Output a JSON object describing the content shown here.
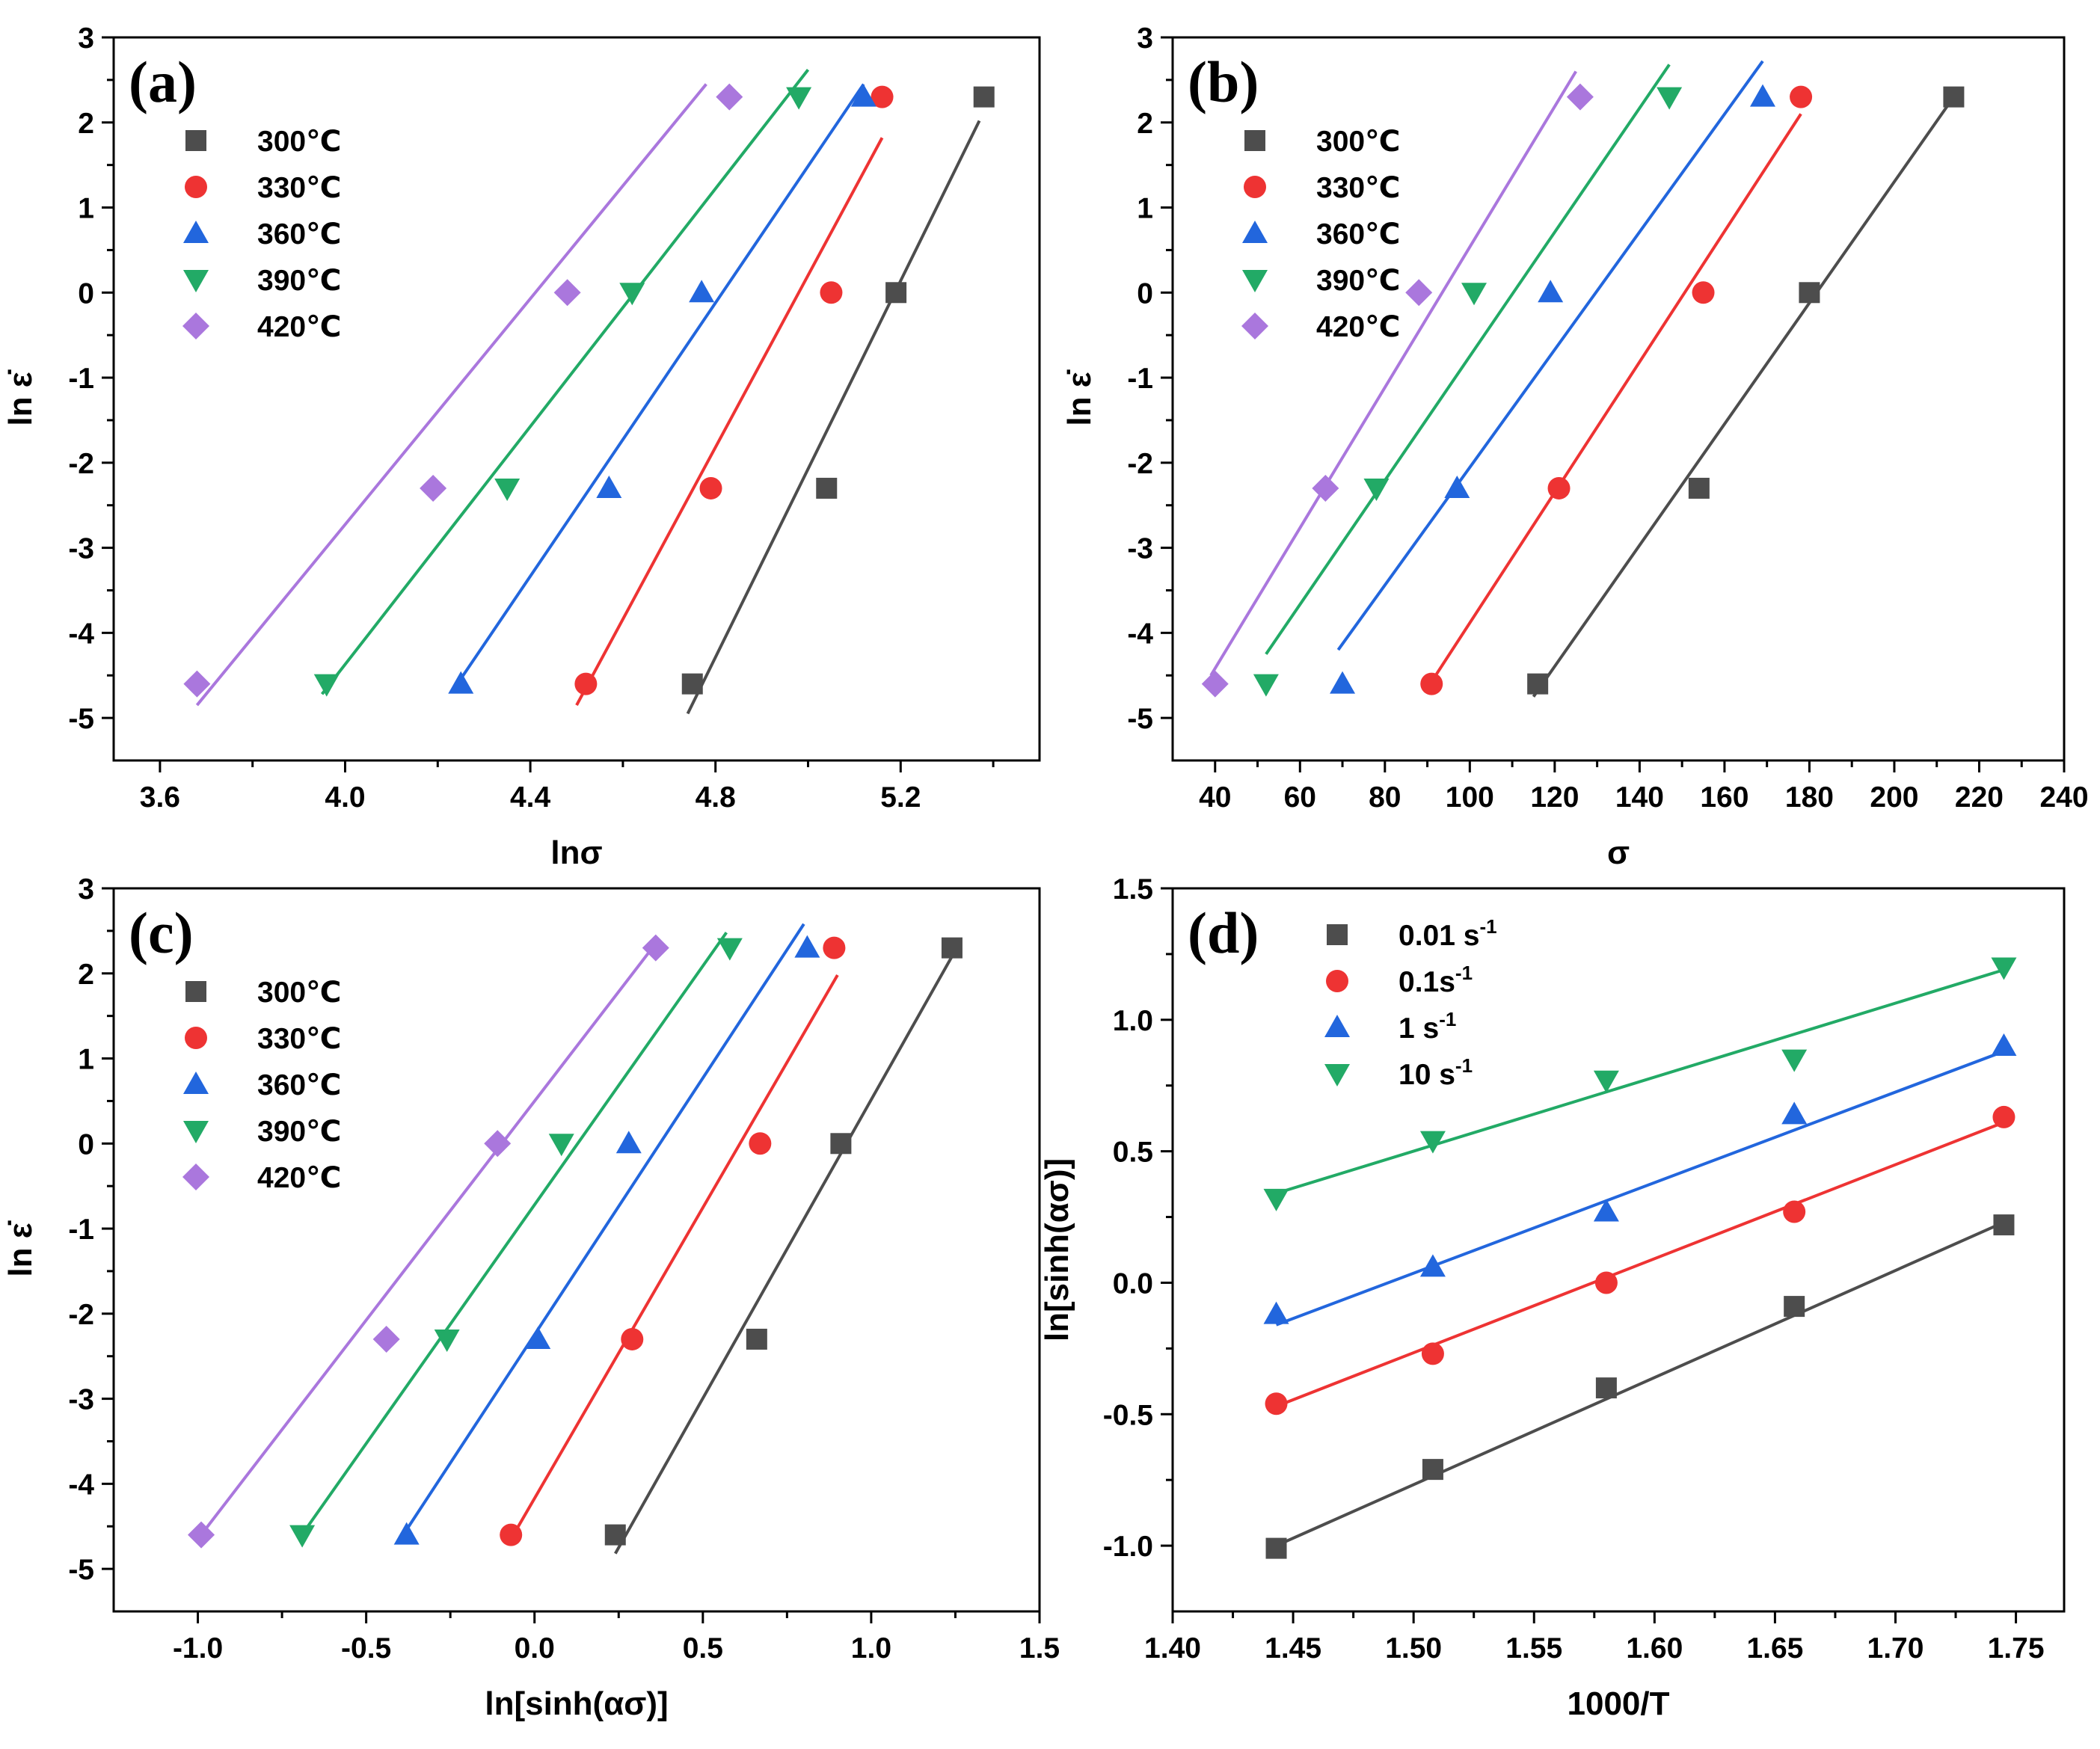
{
  "figure": {
    "layout": "2x2 grid of scatter plots with linear fits"
  },
  "chart_data": [
    {
      "panel": "(a)",
      "type": "scatter",
      "xlabel": "lnσ",
      "ylabel": "ln ε̇",
      "xlim": [
        3.5,
        5.5
      ],
      "ylim": [
        -5.5,
        3
      ],
      "xticks": [
        3.6,
        4.0,
        4.4,
        4.8,
        5.2
      ],
      "xtick_labels": [
        "3.6",
        "4.0",
        "4.4",
        "4.8",
        "5.2"
      ],
      "yticks": [
        -5,
        -4,
        -3,
        -2,
        -1,
        0,
        1,
        2,
        3
      ],
      "ytick_labels": [
        "-5",
        "-4",
        "-3",
        "-2",
        "-1",
        "0",
        "1",
        "2",
        "3"
      ],
      "legend_position": "top-left",
      "series": [
        {
          "name": "300℃",
          "color": "#4d4d4d",
          "marker": "square",
          "x": [
            4.75,
            5.04,
            5.19,
            5.38
          ],
          "y": [
            -4.6,
            -2.3,
            0,
            2.3
          ],
          "fit": [
            [
              4.74,
              -4.95
            ],
            [
              5.37,
              2.02
            ]
          ]
        },
        {
          "name": "330℃",
          "color": "#ee3333",
          "marker": "circle",
          "x": [
            4.52,
            4.79,
            5.05,
            5.16
          ],
          "y": [
            -4.6,
            -2.3,
            0,
            2.3
          ],
          "fit": [
            [
              4.5,
              -4.85
            ],
            [
              5.16,
              1.82
            ]
          ]
        },
        {
          "name": "360℃",
          "color": "#2266dd",
          "marker": "triangle-up",
          "x": [
            4.25,
            4.57,
            4.77,
            5.12
          ],
          "y": [
            -4.6,
            -2.3,
            0,
            2.3
          ],
          "fit": [
            [
              4.23,
              -4.7
            ],
            [
              5.12,
              2.45
            ]
          ]
        },
        {
          "name": "390℃",
          "color": "#22aa66",
          "marker": "triangle-down",
          "x": [
            3.96,
            4.35,
            4.62,
            4.98
          ],
          "y": [
            -4.6,
            -2.3,
            0,
            2.3
          ],
          "fit": [
            [
              3.95,
              -4.72
            ],
            [
              5.0,
              2.62
            ]
          ]
        },
        {
          "name": "420℃",
          "color": "#aa77dd",
          "marker": "diamond",
          "x": [
            3.68,
            4.19,
            4.48,
            4.83
          ],
          "y": [
            -4.6,
            -2.3,
            0,
            2.3
          ],
          "fit": [
            [
              3.68,
              -4.85
            ],
            [
              4.78,
              2.45
            ]
          ]
        }
      ]
    },
    {
      "panel": "(b)",
      "type": "scatter",
      "xlabel": "σ",
      "ylabel": "ln ε̇",
      "xlim": [
        30,
        240
      ],
      "ylim": [
        -5.5,
        3
      ],
      "xticks": [
        40,
        60,
        80,
        100,
        120,
        140,
        160,
        180,
        200,
        220,
        240
      ],
      "xtick_labels": [
        "40",
        "60",
        "80",
        "100",
        "120",
        "140",
        "160",
        "180",
        "200",
        "220",
        "240"
      ],
      "yticks": [
        -5,
        -4,
        -3,
        -2,
        -1,
        0,
        1,
        2,
        3
      ],
      "ytick_labels": [
        "-5",
        "-4",
        "-3",
        "-2",
        "-1",
        "0",
        "1",
        "2",
        "3"
      ],
      "legend_position": "top-left",
      "series": [
        {
          "name": "300℃",
          "color": "#4d4d4d",
          "marker": "square",
          "x": [
            116,
            154,
            180,
            214
          ],
          "y": [
            -4.6,
            -2.3,
            0,
            2.3
          ],
          "fit": [
            [
              115,
              -4.75
            ],
            [
              214,
              2.3
            ]
          ]
        },
        {
          "name": "330℃",
          "color": "#ee3333",
          "marker": "circle",
          "x": [
            91,
            121,
            155,
            178
          ],
          "y": [
            -4.6,
            -2.3,
            0,
            2.3
          ],
          "fit": [
            [
              90,
              -4.65
            ],
            [
              178,
              2.1
            ]
          ]
        },
        {
          "name": "360℃",
          "color": "#2266dd",
          "marker": "triangle-up",
          "x": [
            70,
            97,
            119,
            169
          ],
          "y": [
            -4.6,
            -2.3,
            0,
            2.3
          ],
          "fit": [
            [
              69,
              -4.2
            ],
            [
              169,
              2.72
            ]
          ]
        },
        {
          "name": "390℃",
          "color": "#22aa66",
          "marker": "triangle-down",
          "x": [
            52,
            78,
            101,
            147
          ],
          "y": [
            -4.6,
            -2.3,
            0,
            2.3
          ],
          "fit": [
            [
              52,
              -4.25
            ],
            [
              147,
              2.68
            ]
          ]
        },
        {
          "name": "420℃",
          "color": "#aa77dd",
          "marker": "diamond",
          "x": [
            40,
            66,
            88,
            126
          ],
          "y": [
            -4.6,
            -2.3,
            0,
            2.3
          ],
          "fit": [
            [
              39,
              -4.5
            ],
            [
              125,
              2.6
            ]
          ]
        }
      ]
    },
    {
      "panel": "(c)",
      "type": "scatter",
      "xlabel": "ln[sinh(ασ)]",
      "ylabel": "ln ε̇",
      "xlim": [
        -1.25,
        1.5
      ],
      "ylim": [
        -5.5,
        3
      ],
      "xticks": [
        -1.0,
        -0.5,
        0.0,
        0.5,
        1.0,
        1.5
      ],
      "xtick_labels": [
        "-1.0",
        "-0.5",
        "0.0",
        "0.5",
        "1.0",
        "1.5"
      ],
      "yticks": [
        -5,
        -4,
        -3,
        -2,
        -1,
        0,
        1,
        2,
        3
      ],
      "ytick_labels": [
        "-5",
        "-4",
        "-3",
        "-2",
        "-1",
        "0",
        "1",
        "2",
        "3"
      ],
      "legend_position": "top-left",
      "series": [
        {
          "name": "300℃",
          "color": "#4d4d4d",
          "marker": "square",
          "x": [
            0.24,
            0.66,
            0.91,
            1.24
          ],
          "y": [
            -4.6,
            -2.3,
            0,
            2.3
          ],
          "fit": [
            [
              0.24,
              -4.82
            ],
            [
              1.24,
              2.2
            ]
          ]
        },
        {
          "name": "330℃",
          "color": "#ee3333",
          "marker": "circle",
          "x": [
            -0.07,
            0.29,
            0.67,
            0.89
          ],
          "y": [
            -4.6,
            -2.3,
            0,
            2.3
          ],
          "fit": [
            [
              -0.07,
              -4.65
            ],
            [
              0.9,
              1.98
            ]
          ]
        },
        {
          "name": "360℃",
          "color": "#2266dd",
          "marker": "triangle-up",
          "x": [
            -0.38,
            0.01,
            0.28,
            0.81
          ],
          "y": [
            -4.6,
            -2.3,
            0,
            2.3
          ],
          "fit": [
            [
              -0.39,
              -4.6
            ],
            [
              0.8,
              2.58
            ]
          ]
        },
        {
          "name": "390℃",
          "color": "#22aa66",
          "marker": "triangle-down",
          "x": [
            -0.69,
            -0.26,
            0.08,
            0.58
          ],
          "y": [
            -4.6,
            -2.3,
            0,
            2.3
          ],
          "fit": [
            [
              -0.7,
              -4.65
            ],
            [
              0.57,
              2.48
            ]
          ]
        },
        {
          "name": "420℃",
          "color": "#aa77dd",
          "marker": "diamond",
          "x": [
            -0.99,
            -0.44,
            -0.11,
            0.36
          ],
          "y": [
            -4.6,
            -2.3,
            0,
            2.3
          ],
          "fit": [
            [
              -1.0,
              -4.65
            ],
            [
              0.35,
              2.3
            ]
          ]
        }
      ]
    },
    {
      "panel": "(d)",
      "type": "scatter",
      "xlabel": "1000/T",
      "ylabel": "ln[sinh(ασ)]",
      "xlim": [
        1.4,
        1.77
      ],
      "ylim": [
        -1.25,
        1.5
      ],
      "xticks": [
        1.4,
        1.45,
        1.5,
        1.55,
        1.6,
        1.65,
        1.7,
        1.75
      ],
      "xtick_labels": [
        "1.40",
        "1.45",
        "1.50",
        "1.55",
        "1.60",
        "1.65",
        "1.70",
        "1.75"
      ],
      "yticks": [
        -1.0,
        -0.5,
        0.0,
        0.5,
        1.0,
        1.5
      ],
      "ytick_labels": [
        "-1.0",
        "-0.5",
        "0.0",
        "0.5",
        "1.0",
        "1.5"
      ],
      "legend_position": "top-left",
      "series": [
        {
          "name": "0.01 s",
          "sup": "-1",
          "color": "#4d4d4d",
          "marker": "square",
          "x": [
            1.443,
            1.508,
            1.58,
            1.658,
            1.745
          ],
          "y": [
            -1.01,
            -0.71,
            -0.4,
            -0.09,
            0.22
          ],
          "fit": [
            [
              1.443,
              -1.0
            ],
            [
              1.745,
              0.23
            ]
          ]
        },
        {
          "name": "0.1s",
          "sup": "-1",
          "color": "#ee3333",
          "marker": "circle",
          "x": [
            1.443,
            1.508,
            1.58,
            1.658,
            1.745
          ],
          "y": [
            -0.46,
            -0.27,
            0.0,
            0.27,
            0.63
          ],
          "fit": [
            [
              1.443,
              -0.47
            ],
            [
              1.745,
              0.61
            ]
          ]
        },
        {
          "name": "1 s",
          "sup": "-1",
          "color": "#2266dd",
          "marker": "triangle-up",
          "x": [
            1.443,
            1.508,
            1.58,
            1.658,
            1.745
          ],
          "y": [
            -0.12,
            0.06,
            0.27,
            0.64,
            0.9
          ],
          "fit": [
            [
              1.443,
              -0.16
            ],
            [
              1.745,
              0.88
            ]
          ]
        },
        {
          "name": "10 s",
          "sup": "-1",
          "color": "#22aa66",
          "marker": "triangle-down",
          "x": [
            1.443,
            1.508,
            1.58,
            1.658,
            1.745
          ],
          "y": [
            0.32,
            0.54,
            0.77,
            0.85,
            1.2
          ],
          "fit": [
            [
              1.443,
              0.34
            ],
            [
              1.745,
              1.19
            ]
          ]
        }
      ]
    }
  ]
}
